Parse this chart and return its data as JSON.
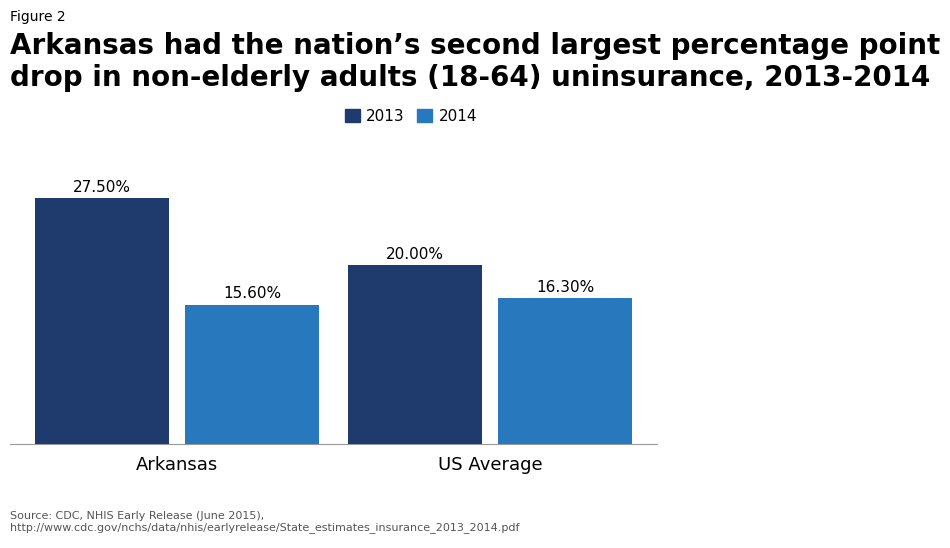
{
  "figure_label": "Figure 2",
  "title": "Arkansas had the nation’s second largest percentage point\ndrop in non-elderly adults (18-64) uninsurance, 2013-2014",
  "categories": [
    "Arkansas",
    "US Average"
  ],
  "values_2013": [
    27.5,
    20.0
  ],
  "values_2014": [
    15.6,
    16.3
  ],
  "labels_2013": [
    "27.50%",
    "20.00%"
  ],
  "labels_2014": [
    "15.60%",
    "16.30%"
  ],
  "color_2013": "#1F3B6E",
  "color_2014": "#2878BE",
  "bar_width": 0.32,
  "ylim": [
    0,
    32
  ],
  "source_text": "Source: CDC, NHIS Early Release (June 2015),\nhttp://www.cdc.gov/nchs/data/nhis/earlyrelease/State_estimates_insurance_2013_2014.pdf",
  "legend_labels": [
    "2013",
    "2014"
  ],
  "title_fontsize": 20,
  "figure_label_fontsize": 10,
  "source_fontsize": 8,
  "annotation_fontsize": 11,
  "xtick_fontsize": 13,
  "legend_fontsize": 11,
  "group_centers": [
    0.25,
    1.0
  ],
  "bar_gap": 0.04
}
